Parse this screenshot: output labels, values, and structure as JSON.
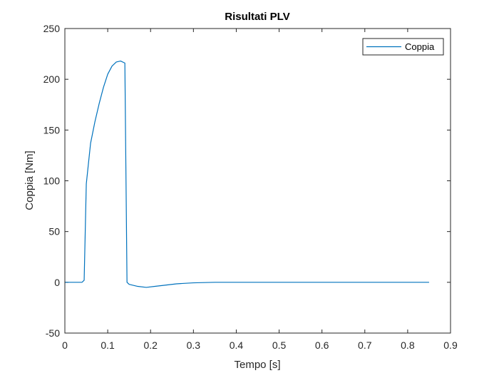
{
  "chart_data": {
    "type": "line",
    "title": "Risultati PLV",
    "xlabel": "Tempo [s]",
    "ylabel": "Coppia [Nm]",
    "xlim": [
      0,
      0.9
    ],
    "ylim": [
      -50,
      250
    ],
    "xticks": [
      0,
      0.1,
      0.2,
      0.3,
      0.4,
      0.5,
      0.6,
      0.7,
      0.8,
      0.9
    ],
    "xtick_labels": [
      "0",
      "0.1",
      "0.2",
      "0.3",
      "0.4",
      "0.5",
      "0.6",
      "0.7",
      "0.8",
      "0.9"
    ],
    "yticks": [
      -50,
      0,
      50,
      100,
      150,
      200,
      250
    ],
    "ytick_labels": [
      "-50",
      "0",
      "50",
      "100",
      "150",
      "200",
      "250"
    ],
    "grid": false,
    "legend_position": "top-right",
    "line_color": "#0072BD",
    "series": [
      {
        "name": "Coppia",
        "x": [
          0,
          0.04,
          0.045,
          0.05,
          0.06,
          0.07,
          0.08,
          0.09,
          0.1,
          0.11,
          0.12,
          0.13,
          0.14,
          0.145,
          0.15,
          0.17,
          0.19,
          0.21,
          0.23,
          0.26,
          0.3,
          0.35,
          0.4,
          0.5,
          0.6,
          0.7,
          0.8,
          0.85
        ],
        "y": [
          0,
          0,
          2,
          97,
          137,
          158,
          176,
          192,
          205,
          213,
          217,
          218,
          216,
          0,
          -2,
          -4,
          -5,
          -4,
          -3,
          -1.5,
          -0.5,
          0,
          0,
          0,
          0,
          0,
          0,
          0
        ]
      }
    ]
  }
}
